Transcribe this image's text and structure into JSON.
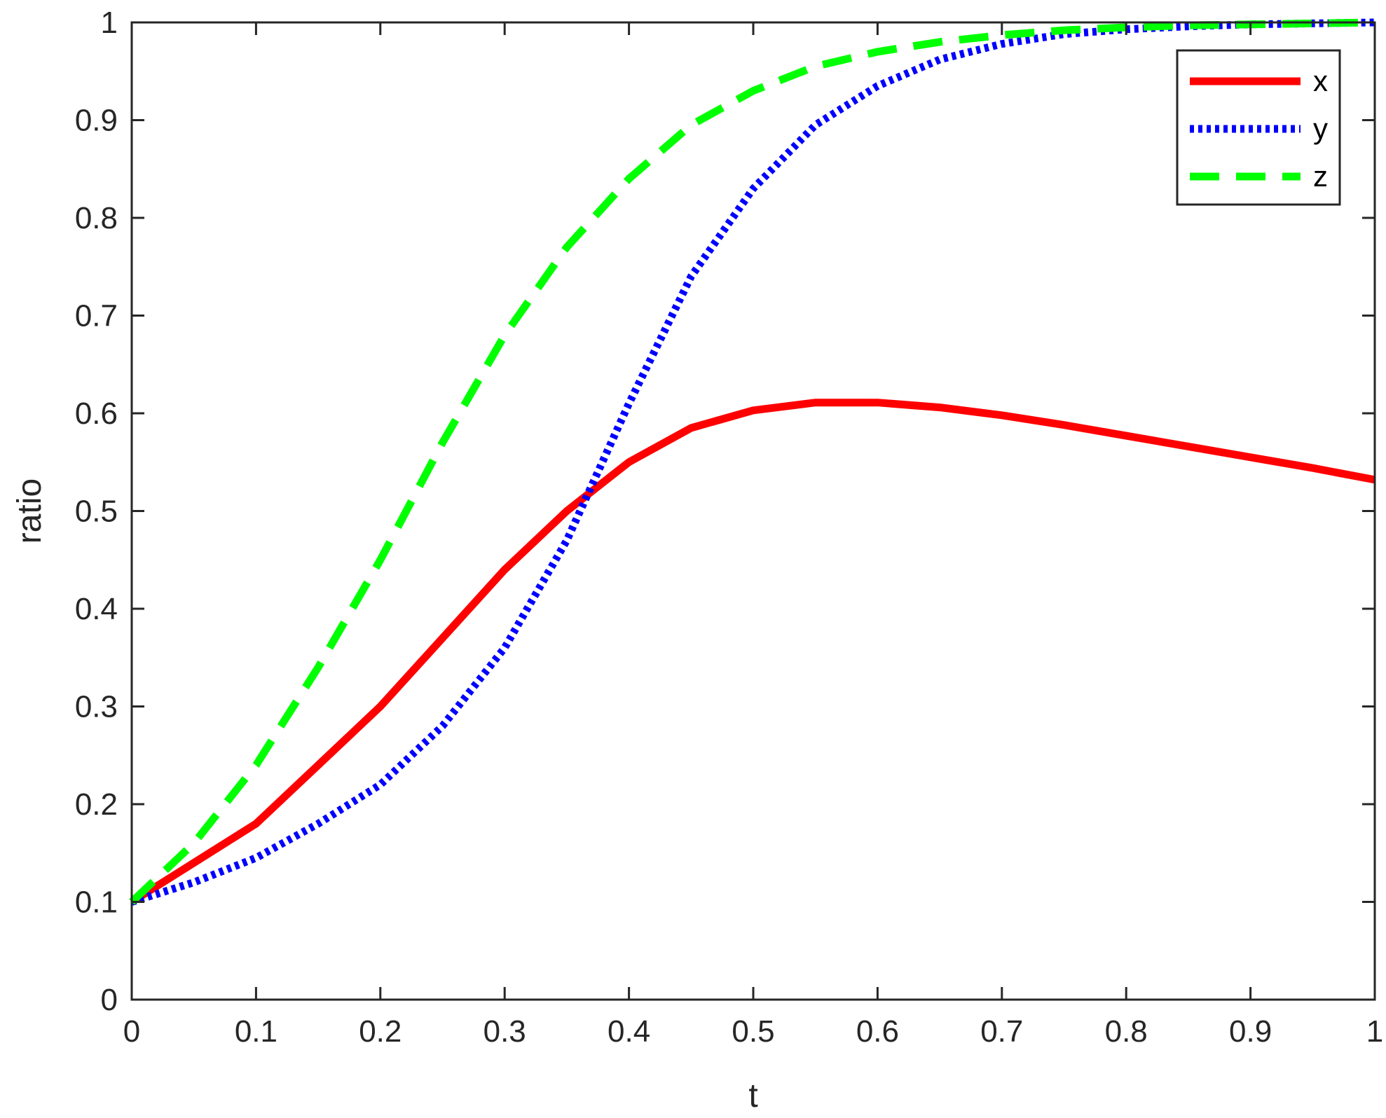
{
  "chart_data": {
    "type": "line",
    "xlabel": "t",
    "ylabel": "ratio",
    "xlim": [
      0,
      1
    ],
    "ylim": [
      0,
      1
    ],
    "xticks": [
      "0",
      "0.1",
      "0.2",
      "0.3",
      "0.4",
      "0.5",
      "0.6",
      "0.7",
      "0.8",
      "0.9",
      "1"
    ],
    "yticks": [
      "0",
      "0.1",
      "0.2",
      "0.3",
      "0.4",
      "0.5",
      "0.6",
      "0.7",
      "0.8",
      "0.9",
      "1"
    ],
    "legend_position": "top-right",
    "grid": false,
    "x": [
      0,
      0.05,
      0.1,
      0.15,
      0.2,
      0.25,
      0.3,
      0.35,
      0.4,
      0.45,
      0.5,
      0.55,
      0.6,
      0.65,
      0.7,
      0.75,
      0.8,
      0.85,
      0.9,
      0.95,
      1.0
    ],
    "series": [
      {
        "name": "x",
        "color": "#ff0000",
        "style": "solid",
        "values": [
          0.1,
          0.14,
          0.18,
          0.24,
          0.3,
          0.37,
          0.44,
          0.5,
          0.55,
          0.585,
          0.603,
          0.611,
          0.611,
          0.606,
          0.598,
          0.588,
          0.577,
          0.566,
          0.555,
          0.544,
          0.532
        ]
      },
      {
        "name": "y",
        "color": "#0000ff",
        "style": "dotted",
        "values": [
          0.1,
          0.12,
          0.145,
          0.18,
          0.22,
          0.28,
          0.36,
          0.47,
          0.61,
          0.74,
          0.83,
          0.895,
          0.935,
          0.962,
          0.978,
          0.988,
          0.993,
          0.996,
          0.998,
          0.999,
          1.0
        ]
      },
      {
        "name": "z",
        "color": "#00ff00",
        "style": "dashed",
        "values": [
          0.1,
          0.16,
          0.24,
          0.34,
          0.45,
          0.57,
          0.68,
          0.77,
          0.84,
          0.895,
          0.93,
          0.955,
          0.97,
          0.98,
          0.987,
          0.992,
          0.995,
          0.997,
          0.998,
          0.999,
          1.0
        ]
      }
    ]
  }
}
